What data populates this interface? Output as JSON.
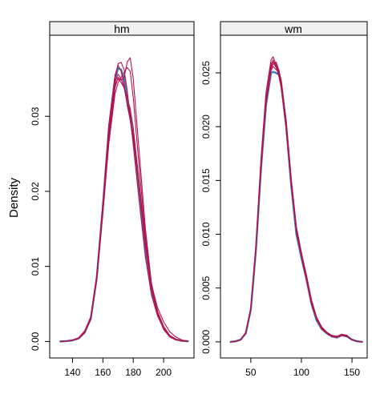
{
  "ylabel": "Density",
  "colors": {
    "primary": "#3a7fbe",
    "imputed": "#b3134f",
    "strip_bg": "#f0f0f0",
    "frame": "#000000"
  },
  "chart_data": [
    {
      "type": "line",
      "panel": "hm",
      "xlim": [
        125,
        220
      ],
      "ylim": [
        -0.0022,
        0.0408
      ],
      "x_ticks": [
        140,
        160,
        180,
        200
      ],
      "y_ticks": [
        0.0,
        0.01,
        0.02,
        0.03
      ],
      "y_tick_labels": [
        "0.00",
        "0.01",
        "0.02",
        "0.03"
      ],
      "x": [
        132,
        136,
        140,
        144,
        148,
        152,
        156,
        160,
        164,
        168,
        170,
        172,
        174,
        176,
        178,
        180,
        184,
        188,
        192,
        196,
        200,
        204,
        208,
        212,
        216
      ],
      "series": [
        {
          "role": "observed",
          "values": [
            0,
            5e-05,
            0.00015,
            0.0004,
            0.0012,
            0.003,
            0.0085,
            0.018,
            0.0285,
            0.035,
            0.0364,
            0.0362,
            0.035,
            0.0325,
            0.03,
            0.027,
            0.0195,
            0.012,
            0.0068,
            0.0037,
            0.0018,
            0.0007,
            0.00025,
            8e-05,
            2e-05
          ]
        },
        {
          "role": "imputed",
          "values": [
            0,
            4e-05,
            0.00014,
            0.0004,
            0.0012,
            0.0032,
            0.0088,
            0.0182,
            0.028,
            0.0342,
            0.035,
            0.0345,
            0.0338,
            0.0325,
            0.031,
            0.0285,
            0.021,
            0.0135,
            0.0075,
            0.004,
            0.002,
            0.0008,
            0.0003,
            0.0001,
            2e-05
          ]
        },
        {
          "role": "imputed",
          "values": [
            0,
            5e-05,
            0.00016,
            0.0004,
            0.0013,
            0.0031,
            0.0083,
            0.0175,
            0.028,
            0.035,
            0.037,
            0.0372,
            0.0362,
            0.0335,
            0.03,
            0.0262,
            0.0185,
            0.0112,
            0.0062,
            0.0034,
            0.0017,
            0.0007,
            0.00025,
            8e-05,
            2e-05
          ]
        },
        {
          "role": "imputed",
          "values": [
            0,
            6e-05,
            0.00018,
            0.0005,
            0.0014,
            0.0033,
            0.0085,
            0.017,
            0.0265,
            0.033,
            0.0345,
            0.0352,
            0.0358,
            0.0365,
            0.036,
            0.0325,
            0.023,
            0.014,
            0.0072,
            0.0036,
            0.0016,
            0.0006,
            0.0002,
            7e-05,
            2e-05
          ]
        },
        {
          "role": "imputed",
          "values": [
            0,
            5e-05,
            0.00015,
            0.0004,
            0.0012,
            0.003,
            0.0082,
            0.0172,
            0.0272,
            0.0338,
            0.0352,
            0.0348,
            0.0352,
            0.0372,
            0.0378,
            0.035,
            0.025,
            0.015,
            0.0078,
            0.004,
            0.0019,
            0.0008,
            0.0003,
            0.0001,
            2e-05
          ]
        },
        {
          "role": "imputed",
          "values": [
            0,
            4e-05,
            0.00014,
            0.0004,
            0.0011,
            0.003,
            0.0086,
            0.0182,
            0.029,
            0.0355,
            0.0368,
            0.036,
            0.0342,
            0.0315,
            0.0295,
            0.0272,
            0.0205,
            0.0128,
            0.007,
            0.0038,
            0.0019,
            0.0008,
            0.0003,
            0.0001,
            2e-05
          ]
        },
        {
          "role": "imputed",
          "values": [
            0,
            5e-05,
            0.00015,
            0.0004,
            0.0012,
            0.0031,
            0.0087,
            0.018,
            0.0282,
            0.0345,
            0.0356,
            0.035,
            0.0338,
            0.0318,
            0.03,
            0.0275,
            0.0205,
            0.013,
            0.0076,
            0.0045,
            0.0026,
            0.0013,
            0.0006,
            0.0002,
            5e-05
          ]
        }
      ]
    },
    {
      "type": "line",
      "panel": "wm",
      "xlim": [
        20,
        165
      ],
      "ylim": [
        -0.0015,
        0.0285
      ],
      "x_ticks": [
        50,
        100,
        150
      ],
      "y_ticks": [
        0.0,
        0.005,
        0.01,
        0.015,
        0.02,
        0.025
      ],
      "y_tick_labels": [
        "0.000",
        "0.005",
        "0.010",
        "0.015",
        "0.020",
        "0.025"
      ],
      "x": [
        30,
        35,
        40,
        45,
        50,
        55,
        60,
        65,
        70,
        72,
        75,
        78,
        80,
        85,
        90,
        95,
        100,
        105,
        110,
        115,
        120,
        125,
        130,
        135,
        140,
        145,
        150,
        155,
        160
      ],
      "series": [
        {
          "role": "observed",
          "values": [
            0,
            5e-05,
            0.0002,
            0.0008,
            0.003,
            0.0085,
            0.016,
            0.022,
            0.025,
            0.0251,
            0.025,
            0.0248,
            0.024,
            0.02,
            0.0145,
            0.01,
            0.0078,
            0.0058,
            0.0035,
            0.002,
            0.0012,
            0.0008,
            0.0005,
            0.0004,
            0.0006,
            0.0005,
            0.0002,
            5e-05,
            0
          ]
        },
        {
          "role": "imputed",
          "values": [
            0,
            5e-05,
            0.0002,
            0.0008,
            0.0031,
            0.0088,
            0.0165,
            0.0225,
            0.0256,
            0.026,
            0.0255,
            0.0248,
            0.0238,
            0.0202,
            0.0148,
            0.0104,
            0.008,
            0.0058,
            0.0036,
            0.0021,
            0.0013,
            0.0008,
            0.0005,
            0.0005,
            0.0006,
            0.0005,
            0.0002,
            5e-05,
            0
          ]
        },
        {
          "role": "imputed",
          "values": [
            0,
            5e-05,
            0.0002,
            0.0009,
            0.0032,
            0.009,
            0.017,
            0.0232,
            0.0262,
            0.0265,
            0.0258,
            0.025,
            0.024,
            0.0198,
            0.0146,
            0.0103,
            0.0081,
            0.006,
            0.0037,
            0.0022,
            0.0013,
            0.0009,
            0.0006,
            0.0005,
            0.0007,
            0.0006,
            0.0002,
            5e-05,
            0
          ]
        },
        {
          "role": "imputed",
          "values": [
            0,
            5e-05,
            0.0002,
            0.0008,
            0.003,
            0.0086,
            0.0162,
            0.0222,
            0.0254,
            0.0258,
            0.026,
            0.0252,
            0.0242,
            0.0204,
            0.015,
            0.0106,
            0.0082,
            0.0061,
            0.0038,
            0.0022,
            0.0013,
            0.0009,
            0.0006,
            0.0005,
            0.0006,
            0.0005,
            0.0002,
            5e-05,
            0
          ]
        },
        {
          "role": "imputed",
          "values": [
            0,
            5e-05,
            0.0002,
            0.0008,
            0.0031,
            0.0087,
            0.0164,
            0.0226,
            0.0258,
            0.0262,
            0.0256,
            0.0246,
            0.0236,
            0.02,
            0.0147,
            0.0102,
            0.0079,
            0.0057,
            0.0035,
            0.0021,
            0.0012,
            0.0008,
            0.0005,
            0.0004,
            0.0006,
            0.0005,
            0.0002,
            5e-05,
            0
          ]
        },
        {
          "role": "imputed",
          "values": [
            0,
            5e-05,
            0.0002,
            0.0008,
            0.003,
            0.0085,
            0.0161,
            0.0221,
            0.0252,
            0.0256,
            0.0253,
            0.025,
            0.0244,
            0.0206,
            0.0152,
            0.0107,
            0.0083,
            0.0062,
            0.0039,
            0.0023,
            0.0014,
            0.0009,
            0.0006,
            0.0005,
            0.0007,
            0.0006,
            0.0002,
            5e-05,
            0
          ]
        }
      ]
    }
  ]
}
